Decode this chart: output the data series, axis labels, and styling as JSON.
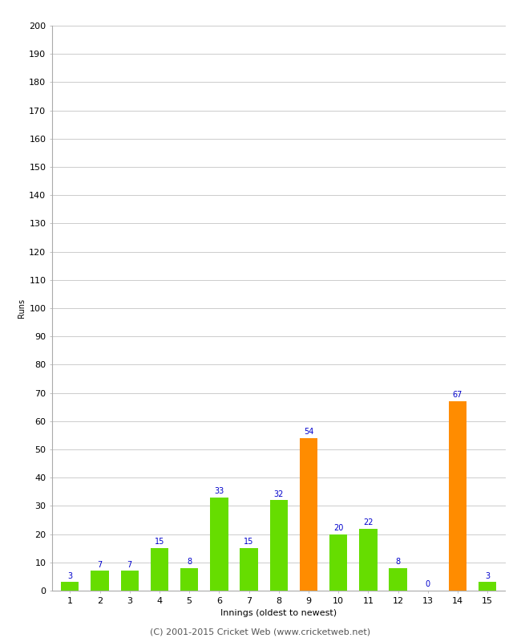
{
  "xlabel": "Innings (oldest to newest)",
  "ylabel": "Runs",
  "categories": [
    "1",
    "2",
    "3",
    "4",
    "5",
    "6",
    "7",
    "8",
    "9",
    "10",
    "11",
    "12",
    "13",
    "14",
    "15"
  ],
  "values": [
    3,
    7,
    7,
    15,
    8,
    33,
    15,
    32,
    54,
    20,
    22,
    8,
    0,
    67,
    3
  ],
  "colors": [
    "#66dd00",
    "#66dd00",
    "#66dd00",
    "#66dd00",
    "#66dd00",
    "#66dd00",
    "#66dd00",
    "#66dd00",
    "#ff8c00",
    "#66dd00",
    "#66dd00",
    "#66dd00",
    "#66dd00",
    "#ff8c00",
    "#66dd00"
  ],
  "ylim": [
    0,
    200
  ],
  "ytick_step": 10,
  "label_color": "#0000cc",
  "background_color": "#ffffff",
  "grid_color": "#cccccc",
  "footer": "(C) 2001-2015 Cricket Web (www.cricketweb.net)",
  "bar_width": 0.6,
  "xlabel_fontsize": 8,
  "ylabel_fontsize": 7,
  "tick_fontsize": 8,
  "label_fontsize": 7,
  "footer_fontsize": 8
}
